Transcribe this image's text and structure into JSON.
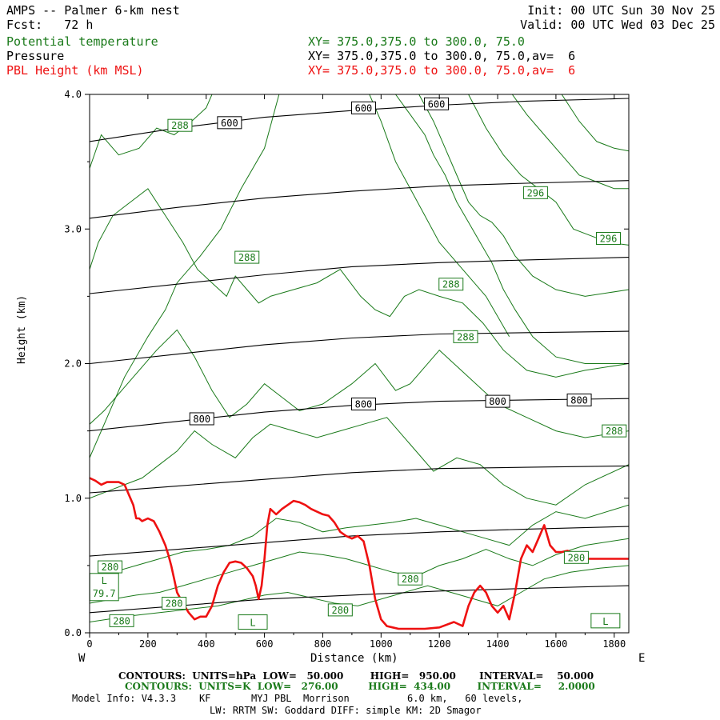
{
  "header": {
    "model_title": "AMPS -- Palmer 6-km nest",
    "forecast": "Fcst:   72 h",
    "init": "Init: 00 UTC Sun 30 Nov 25",
    "valid": "Valid: 00 UTC Wed 03 Dec 25",
    "fields": [
      {
        "name": "Potential temperature",
        "xy": "XY= 375.0,375.0 to 300.0, 75.0",
        "color": "#1a7a1a"
      },
      {
        "name": "Pressure",
        "xy": "XY= 375.0,375.0 to 300.0, 75.0,av=  6",
        "color": "#000000"
      },
      {
        "name": "PBL Height (km MSL)",
        "xy": "XY= 375.0,375.0 to 300.0, 75.0,av=  6",
        "color": "#ee1111"
      }
    ]
  },
  "footer": {
    "line1": "CONTOURS:  UNITS=hPa  LOW=   50.000        HIGH=   950.00       INTERVAL=    50.000",
    "line2": "CONTOURS:  UNITS=K  LOW=   276.00         HIGH=  434.00        INTERVAL=     2.0000",
    "line3": "Model Info: V4.3.3    KF       MYJ PBL  Morrison          6.0 km,   60 levels,",
    "line4": "LW: RRTM SW: Goddard DIFF: simple KM: 2D Smagor"
  },
  "chart_data": {
    "type": "line",
    "xlabel": "Distance (km)",
    "ylabel": "Height (km)",
    "x_left_label": "W",
    "x_right_label": "E",
    "xlim": [
      0,
      1850
    ],
    "ylim": [
      0.0,
      4.0
    ],
    "xticks": [
      0,
      200,
      400,
      600,
      800,
      1000,
      1200,
      1400,
      1600,
      1800
    ],
    "yticks": [
      0.0,
      1.0,
      2.0,
      3.0,
      4.0
    ],
    "ytick_labels": [
      "0.0",
      "1.0",
      "2.0",
      "3.0",
      "4.0"
    ],
    "pressure_color": "#000000",
    "theta_color": "#1a7a1a",
    "pbl_color": "#ee1111",
    "pressure_isobars": [
      {
        "x": [
          0,
          300,
          600,
          900,
          1200,
          1500,
          1850
        ],
        "y": [
          3.65,
          3.75,
          3.83,
          3.88,
          3.92,
          3.95,
          3.97
        ]
      },
      {
        "x": [
          0,
          300,
          600,
          900,
          1200,
          1500,
          1850
        ],
        "y": [
          3.08,
          3.16,
          3.23,
          3.28,
          3.32,
          3.34,
          3.36
        ]
      },
      {
        "x": [
          0,
          300,
          600,
          900,
          1200,
          1500,
          1850
        ],
        "y": [
          2.52,
          2.59,
          2.66,
          2.72,
          2.75,
          2.77,
          2.79
        ]
      },
      {
        "x": [
          0,
          300,
          600,
          900,
          1200,
          1500,
          1850
        ],
        "y": [
          2.0,
          2.07,
          2.14,
          2.19,
          2.22,
          2.23,
          2.24
        ]
      },
      {
        "x": [
          0,
          300,
          600,
          900,
          1200,
          1500,
          1850
        ],
        "y": [
          1.5,
          1.57,
          1.64,
          1.69,
          1.72,
          1.73,
          1.74
        ]
      },
      {
        "x": [
          0,
          300,
          600,
          900,
          1200,
          1500,
          1850
        ],
        "y": [
          1.04,
          1.09,
          1.14,
          1.19,
          1.22,
          1.23,
          1.24
        ]
      },
      {
        "x": [
          0,
          300,
          600,
          900,
          1200,
          1500,
          1850
        ],
        "y": [
          0.57,
          0.62,
          0.67,
          0.72,
          0.75,
          0.77,
          0.79
        ]
      },
      {
        "x": [
          0,
          300,
          600,
          900,
          1200,
          1500,
          1850
        ],
        "y": [
          0.15,
          0.2,
          0.25,
          0.28,
          0.31,
          0.33,
          0.35
        ]
      }
    ],
    "pressure_labels": [
      {
        "text": "600",
        "x": 480,
        "y": 3.79
      },
      {
        "text": "600",
        "x": 940,
        "y": 3.9
      },
      {
        "text": "600",
        "x": 1190,
        "y": 3.93
      },
      {
        "text": "800",
        "x": 385,
        "y": 1.59
      },
      {
        "text": "800",
        "x": 940,
        "y": 1.7
      },
      {
        "text": "800",
        "x": 1400,
        "y": 1.72
      },
      {
        "text": "800",
        "x": 1680,
        "y": 1.73
      }
    ],
    "theta_isentropes": [
      {
        "x": [
          0,
          60,
          120,
          200,
          260,
          300,
          380,
          450,
          520,
          600,
          650
        ],
        "y": [
          1.3,
          1.6,
          1.9,
          2.2,
          2.4,
          2.6,
          2.8,
          3.0,
          3.3,
          3.6,
          4.0
        ]
      },
      {
        "x": [
          0,
          40,
          100,
          170,
          230,
          290,
          350,
          400,
          420
        ],
        "y": [
          3.45,
          3.7,
          3.55,
          3.6,
          3.75,
          3.7,
          3.8,
          3.9,
          4.0
        ]
      },
      {
        "x": [
          0,
          30,
          80,
          140,
          200,
          260,
          320,
          370,
          420,
          470,
          500,
          540,
          580,
          620
        ],
        "y": [
          2.7,
          2.9,
          3.1,
          3.2,
          3.3,
          3.1,
          2.9,
          2.7,
          2.6,
          2.5,
          2.65,
          2.55,
          2.45,
          2.5
        ]
      },
      {
        "x": [
          620,
          700,
          780,
          860,
          930,
          980,
          1030,
          1080,
          1130,
          1200,
          1280,
          1350,
          1420,
          1500,
          1600,
          1700,
          1850
        ],
        "y": [
          2.5,
          2.55,
          2.6,
          2.7,
          2.5,
          2.4,
          2.35,
          2.5,
          2.55,
          2.5,
          2.45,
          2.3,
          2.1,
          1.95,
          1.9,
          1.95,
          2.0
        ]
      },
      {
        "x": [
          0,
          50,
          110,
          170,
          230,
          300,
          360,
          420,
          480,
          540,
          600,
          660,
          720,
          800,
          900,
          980,
          1050,
          1100,
          1200,
          1300,
          1400,
          1500,
          1600,
          1700,
          1850
        ],
        "y": [
          1.55,
          1.65,
          1.8,
          1.95,
          2.1,
          2.25,
          2.05,
          1.8,
          1.6,
          1.7,
          1.85,
          1.75,
          1.65,
          1.7,
          1.85,
          2.0,
          1.8,
          1.85,
          2.1,
          1.9,
          1.7,
          1.6,
          1.5,
          1.45,
          1.5
        ]
      },
      {
        "x": [
          0,
          60,
          120,
          180,
          240,
          300,
          360,
          420,
          500,
          560,
          620,
          700,
          780,
          860,
          940,
          1020,
          1100,
          1180,
          1260,
          1340,
          1420,
          1500,
          1600,
          1700,
          1850
        ],
        "y": [
          1.0,
          1.05,
          1.1,
          1.15,
          1.25,
          1.35,
          1.5,
          1.4,
          1.3,
          1.45,
          1.55,
          1.5,
          1.45,
          1.5,
          1.55,
          1.6,
          1.4,
          1.2,
          1.3,
          1.25,
          1.1,
          1.0,
          0.95,
          1.1,
          1.25
        ]
      },
      {
        "x": [
          0,
          80,
          160,
          240,
          320,
          400,
          480,
          560,
          640,
          720,
          800,
          880,
          960,
          1040,
          1120,
          1200,
          1280,
          1360,
          1440,
          1520,
          1600,
          1700,
          1850
        ],
        "y": [
          0.42,
          0.45,
          0.5,
          0.55,
          0.6,
          0.62,
          0.65,
          0.72,
          0.85,
          0.82,
          0.75,
          0.78,
          0.8,
          0.82,
          0.85,
          0.8,
          0.75,
          0.7,
          0.65,
          0.8,
          0.9,
          0.85,
          0.95
        ]
      },
      {
        "x": [
          0,
          80,
          160,
          240,
          320,
          400,
          480,
          560,
          640,
          720,
          800,
          880,
          960,
          1040,
          1120,
          1200,
          1280,
          1360,
          1440,
          1520,
          1600,
          1700,
          1850
        ],
        "y": [
          0.22,
          0.25,
          0.28,
          0.3,
          0.35,
          0.4,
          0.45,
          0.5,
          0.55,
          0.6,
          0.58,
          0.55,
          0.5,
          0.45,
          0.42,
          0.5,
          0.55,
          0.62,
          0.55,
          0.5,
          0.58,
          0.65,
          0.7
        ]
      },
      {
        "x": [
          0,
          60,
          120,
          200,
          280,
          360,
          440,
          520,
          600,
          680,
          760,
          840,
          920,
          1000,
          1080,
          1160,
          1240,
          1320,
          1400,
          1480,
          1560,
          1650,
          1750,
          1850
        ],
        "y": [
          0.08,
          0.1,
          0.12,
          0.14,
          0.16,
          0.18,
          0.2,
          0.24,
          0.28,
          0.3,
          0.26,
          0.22,
          0.2,
          0.25,
          0.3,
          0.35,
          0.3,
          0.25,
          0.2,
          0.3,
          0.4,
          0.45,
          0.48,
          0.5
        ]
      },
      {
        "x": [
          960,
          1000,
          1050,
          1100,
          1150,
          1200,
          1240,
          1280,
          1320,
          1360,
          1400,
          1440
        ],
        "y": [
          4.0,
          3.8,
          3.5,
          3.3,
          3.1,
          2.9,
          2.8,
          2.7,
          2.6,
          2.5,
          2.35,
          2.2
        ]
      },
      {
        "x": [
          1050,
          1100,
          1150,
          1180,
          1220,
          1260,
          1300,
          1340,
          1380,
          1420,
          1460,
          1520,
          1600,
          1700,
          1850
        ],
        "y": [
          4.0,
          3.85,
          3.7,
          3.55,
          3.4,
          3.2,
          3.05,
          2.9,
          2.75,
          2.55,
          2.4,
          2.2,
          2.05,
          2.0,
          2.0
        ]
      },
      {
        "x": [
          1130,
          1180,
          1220,
          1260,
          1300,
          1340,
          1380,
          1420,
          1460,
          1520,
          1600,
          1700,
          1850
        ],
        "y": [
          4.0,
          3.8,
          3.6,
          3.4,
          3.2,
          3.1,
          3.05,
          2.95,
          2.8,
          2.65,
          2.55,
          2.5,
          2.55
        ]
      },
      {
        "x": [
          1300,
          1360,
          1420,
          1480,
          1540,
          1600,
          1660,
          1720,
          1780,
          1850
        ],
        "y": [
          4.0,
          3.75,
          3.55,
          3.4,
          3.3,
          3.2,
          3.0,
          2.95,
          2.9,
          2.88
        ]
      },
      {
        "x": [
          1450,
          1500,
          1560,
          1620,
          1680,
          1740,
          1800,
          1850
        ],
        "y": [
          4.0,
          3.85,
          3.7,
          3.55,
          3.4,
          3.35,
          3.3,
          3.3
        ]
      },
      {
        "x": [
          1620,
          1680,
          1740,
          1800,
          1850
        ],
        "y": [
          4.0,
          3.8,
          3.65,
          3.6,
          3.58
        ]
      }
    ],
    "theta_labels": [
      {
        "text": "288",
        "x": 310,
        "y": 3.77
      },
      {
        "text": "296",
        "x": 1530,
        "y": 3.27
      },
      {
        "text": "296",
        "x": 1780,
        "y": 2.93
      },
      {
        "text": "288",
        "x": 540,
        "y": 2.79
      },
      {
        "text": "288",
        "x": 1240,
        "y": 2.59
      },
      {
        "text": "288",
        "x": 1290,
        "y": 2.2
      },
      {
        "text": "288",
        "x": 1800,
        "y": 1.5
      },
      {
        "text": "280",
        "x": 70,
        "y": 0.49
      },
      {
        "text": "280",
        "x": 290,
        "y": 0.22
      },
      {
        "text": "280",
        "x": 110,
        "y": 0.09
      },
      {
        "text": "280",
        "x": 1100,
        "y": 0.4
      },
      {
        "text": "280",
        "x": 860,
        "y": 0.17
      },
      {
        "text": "280",
        "x": 1670,
        "y": 0.56
      }
    ],
    "low_markers": [
      {
        "text": "L",
        "x": 50,
        "y": 0.34,
        "sub": "79.7"
      },
      {
        "text": "L",
        "x": 560,
        "y": 0.08,
        "sub": ""
      },
      {
        "text": "L",
        "x": 1770,
        "y": 0.09,
        "sub": ""
      }
    ],
    "pbl_height": {
      "x": [
        0,
        20,
        40,
        60,
        80,
        100,
        120,
        140,
        150,
        160,
        170,
        180,
        200,
        220,
        240,
        260,
        270,
        280,
        290,
        300,
        320,
        340,
        360,
        380,
        400,
        420,
        440,
        460,
        480,
        500,
        520,
        540,
        560,
        570,
        580,
        590,
        600,
        610,
        620,
        640,
        660,
        680,
        700,
        720,
        740,
        760,
        780,
        800,
        820,
        840,
        860,
        880,
        900,
        920,
        940,
        960,
        980,
        1000,
        1020,
        1040,
        1060,
        1080,
        1100,
        1150,
        1200,
        1250,
        1280,
        1300,
        1320,
        1340,
        1360,
        1380,
        1400,
        1420,
        1440,
        1460,
        1480,
        1500,
        1520,
        1540,
        1560,
        1580,
        1600,
        1620,
        1640,
        1660,
        1700,
        1750,
        1800,
        1850
      ],
      "y": [
        1.15,
        1.13,
        1.1,
        1.12,
        1.12,
        1.12,
        1.1,
        1.0,
        0.95,
        0.85,
        0.85,
        0.83,
        0.85,
        0.83,
        0.75,
        0.65,
        0.58,
        0.5,
        0.4,
        0.3,
        0.22,
        0.15,
        0.1,
        0.12,
        0.12,
        0.2,
        0.35,
        0.45,
        0.52,
        0.53,
        0.52,
        0.48,
        0.42,
        0.35,
        0.25,
        0.35,
        0.55,
        0.8,
        0.92,
        0.88,
        0.92,
        0.95,
        0.98,
        0.97,
        0.95,
        0.92,
        0.9,
        0.88,
        0.87,
        0.82,
        0.75,
        0.72,
        0.7,
        0.72,
        0.68,
        0.5,
        0.25,
        0.1,
        0.05,
        0.04,
        0.03,
        0.03,
        0.03,
        0.03,
        0.04,
        0.08,
        0.05,
        0.2,
        0.3,
        0.35,
        0.3,
        0.2,
        0.15,
        0.2,
        0.1,
        0.3,
        0.55,
        0.65,
        0.6,
        0.7,
        0.8,
        0.65,
        0.6,
        0.6,
        0.61,
        0.59,
        0.55,
        0.55,
        0.55,
        0.55
      ]
    }
  }
}
